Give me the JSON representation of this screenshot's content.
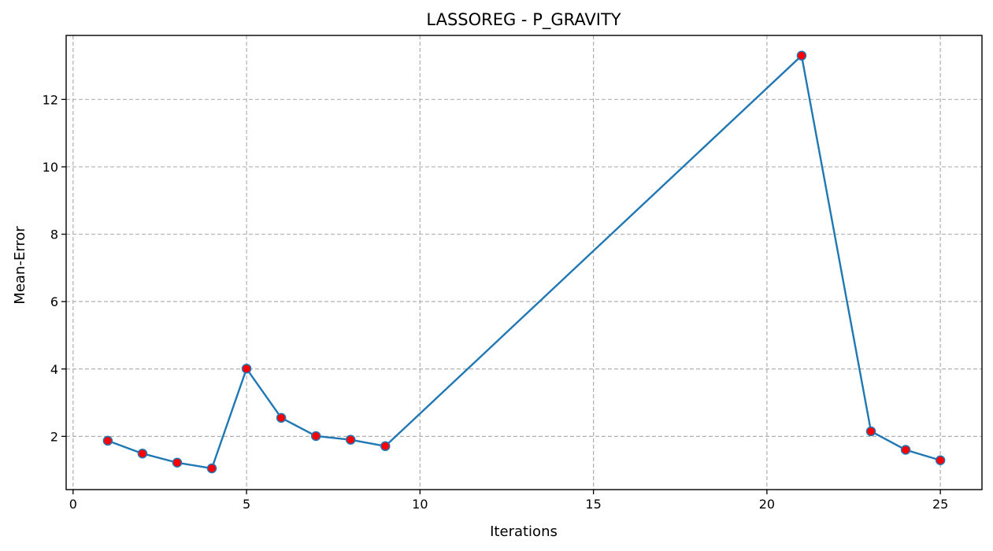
{
  "chart_data": {
    "type": "line",
    "title": "LASSOREG - P_GRAVITY",
    "xlabel": "Iterations",
    "ylabel": "Mean-Error",
    "xlim": [
      -0.2,
      26.2
    ],
    "ylim": [
      0.42,
      13.9
    ],
    "xticks": [
      0,
      5,
      10,
      15,
      20,
      25
    ],
    "yticks": [
      2,
      4,
      6,
      8,
      10,
      12
    ],
    "grid": true,
    "line_color": "#1f77b4",
    "marker_color": "#ff0000",
    "marker_edge_color": "#1f77b4",
    "series": [
      {
        "x": [
          1,
          2,
          3,
          4,
          5,
          6,
          7,
          8,
          9,
          21,
          23,
          24,
          25
        ],
        "y": [
          1.87,
          1.49,
          1.22,
          1.05,
          4.01,
          2.55,
          2.01,
          1.9,
          1.71,
          13.3,
          2.15,
          1.6,
          1.29
        ]
      }
    ]
  }
}
